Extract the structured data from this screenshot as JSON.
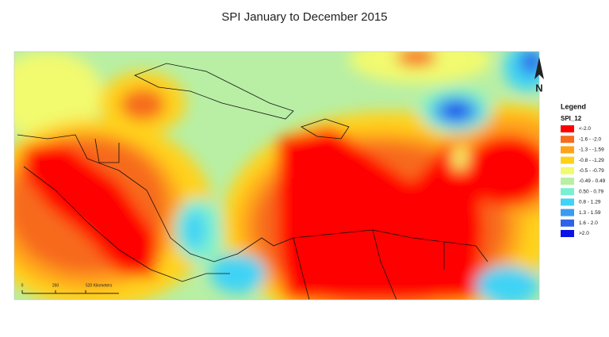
{
  "title": "SPI January  to  December 2015",
  "legend": {
    "title": "Legend",
    "field": "SPI_12",
    "items": [
      {
        "label": "<-2.0",
        "color": "#ff0000"
      },
      {
        "label": "-1.6 - -2.0",
        "color": "#f76b1c"
      },
      {
        "label": "-1.3 - -1.59",
        "color": "#ffa31a"
      },
      {
        "label": "-0.8 - -1.29",
        "color": "#ffd21a"
      },
      {
        "label": "-0.5 - -0.79",
        "color": "#f2fa6e"
      },
      {
        "label": "-0.49 - 0.49",
        "color": "#b8efa4"
      },
      {
        "label": "0.50 - 0.79",
        "color": "#7af0d2"
      },
      {
        "label": "0.8 - 1.29",
        "color": "#3fd3f5"
      },
      {
        "label": "1.3 - 1.59",
        "color": "#3a9cf0"
      },
      {
        "label": "1.6 - 2.0",
        "color": "#2f62e8"
      },
      {
        "label": ">2.0",
        "color": "#0b12e6"
      }
    ]
  },
  "scale_bar": {
    "labels": [
      "0",
      "260",
      "520 Kilometers"
    ]
  },
  "north_arrow": "N"
}
